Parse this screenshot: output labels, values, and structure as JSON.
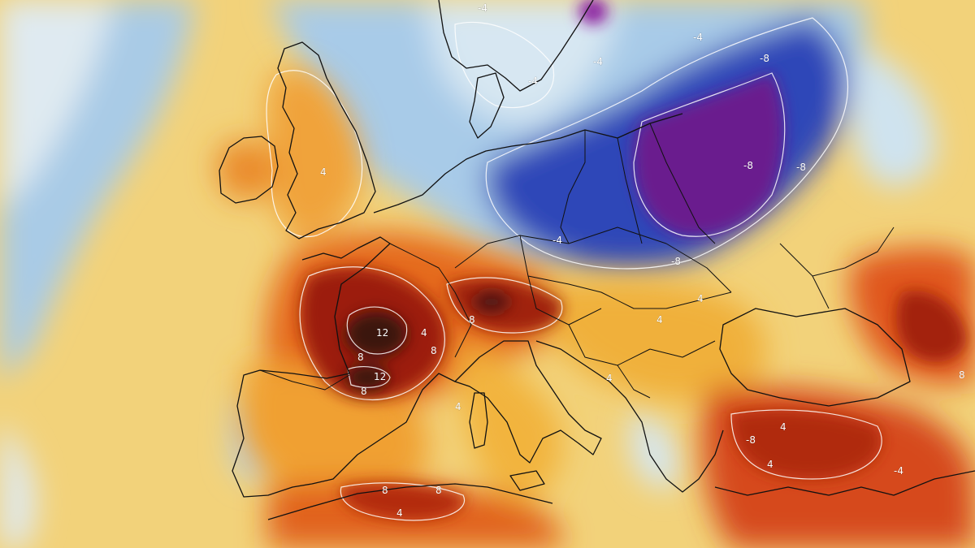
{
  "map": {
    "type": "temperature anomaly field",
    "region": "Europe",
    "colors": {
      "strong_cold": "#6a1a8a",
      "cold": "#2a3fb8",
      "cool": "#9ec6ea",
      "pale": "#dceaf2",
      "neutral": "#f3e6a8",
      "warm": "#f3b838",
      "hot": "#e2611a",
      "very_hot": "#a8200f",
      "extreme": "#3a1410",
      "contour_line": "#ffffff",
      "border_line": "#111111"
    },
    "contour_labels": [
      "-4",
      "-4",
      "-4",
      "-4",
      "-4",
      "-8",
      "-8",
      "-8",
      "-8",
      "4",
      "4",
      "4",
      "4",
      "4",
      "4",
      "4",
      "4",
      "4",
      "8",
      "8",
      "8",
      "8",
      "8",
      "8",
      "8",
      "12",
      "12",
      "-8",
      "-4"
    ]
  }
}
